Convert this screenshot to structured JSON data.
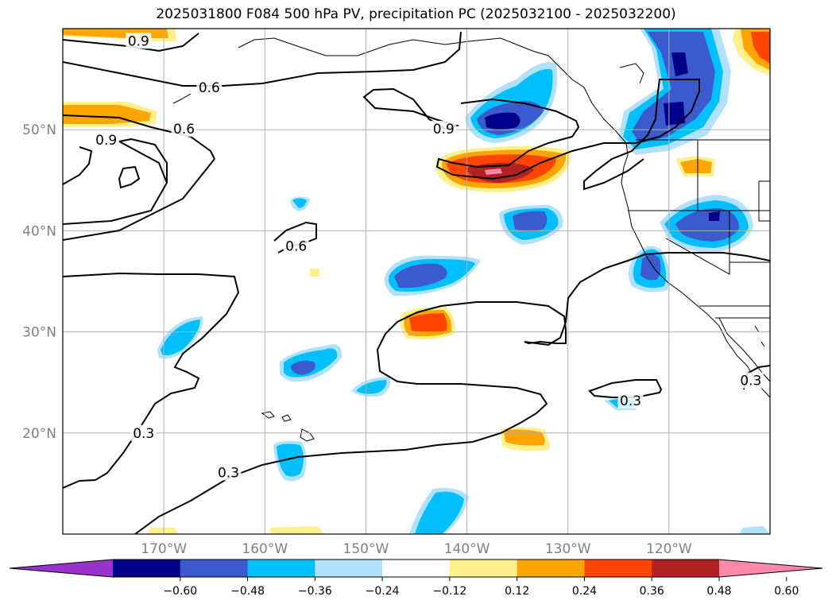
{
  "title": "2025031800 F084 500 hPa PV, precipitation PC (2025032100 - 2025032200)",
  "map": {
    "lat_range": [
      10,
      60
    ],
    "lon_range": [
      -180,
      -110
    ],
    "lat_ticks": [
      {
        "value": 20,
        "label": "20°N"
      },
      {
        "value": 30,
        "label": "30°N"
      },
      {
        "value": 40,
        "label": "40°N"
      },
      {
        "value": 50,
        "label": "50°N"
      }
    ],
    "lon_ticks": [
      {
        "value": -170,
        "label": "170°W"
      },
      {
        "value": -160,
        "label": "160°W"
      },
      {
        "value": -150,
        "label": "150°W"
      },
      {
        "value": -140,
        "label": "140°W"
      },
      {
        "value": -130,
        "label": "130°W"
      },
      {
        "value": -120,
        "label": "120°W"
      }
    ],
    "grid": true,
    "contour_labels": [
      {
        "text": "0.9",
        "lon": -172.5,
        "lat": 58.8
      },
      {
        "text": "0.6",
        "lon": -165.5,
        "lat": 54.2
      },
      {
        "text": "0.6",
        "lon": -168.0,
        "lat": 50.1
      },
      {
        "text": "0.9",
        "lon": -175.7,
        "lat": 49.0
      },
      {
        "text": "0.9",
        "lon": -142.3,
        "lat": 50.1
      },
      {
        "text": "0.6",
        "lon": -156.9,
        "lat": 38.5
      },
      {
        "text": "0.3",
        "lon": -172.0,
        "lat": 20.0
      },
      {
        "text": "0.3",
        "lon": -163.6,
        "lat": 16.1
      },
      {
        "text": "0.3",
        "lon": -123.8,
        "lat": 23.2
      },
      {
        "text": "0.3",
        "lon": -111.9,
        "lat": 25.2
      }
    ]
  },
  "colorbar": {
    "colors": [
      "#9932cc",
      "#00008b",
      "#3a5acd",
      "#00bfff",
      "#b0e2ff",
      "#ffffff",
      "#fff08c",
      "#ffa500",
      "#ff4500",
      "#b22222",
      "#ff88aa"
    ],
    "tick_labels": [
      "−0.60",
      "−0.48",
      "−0.36",
      "−0.24",
      "−0.12",
      "0.12",
      "0.24",
      "0.36",
      "0.48",
      "0.60"
    ]
  }
}
